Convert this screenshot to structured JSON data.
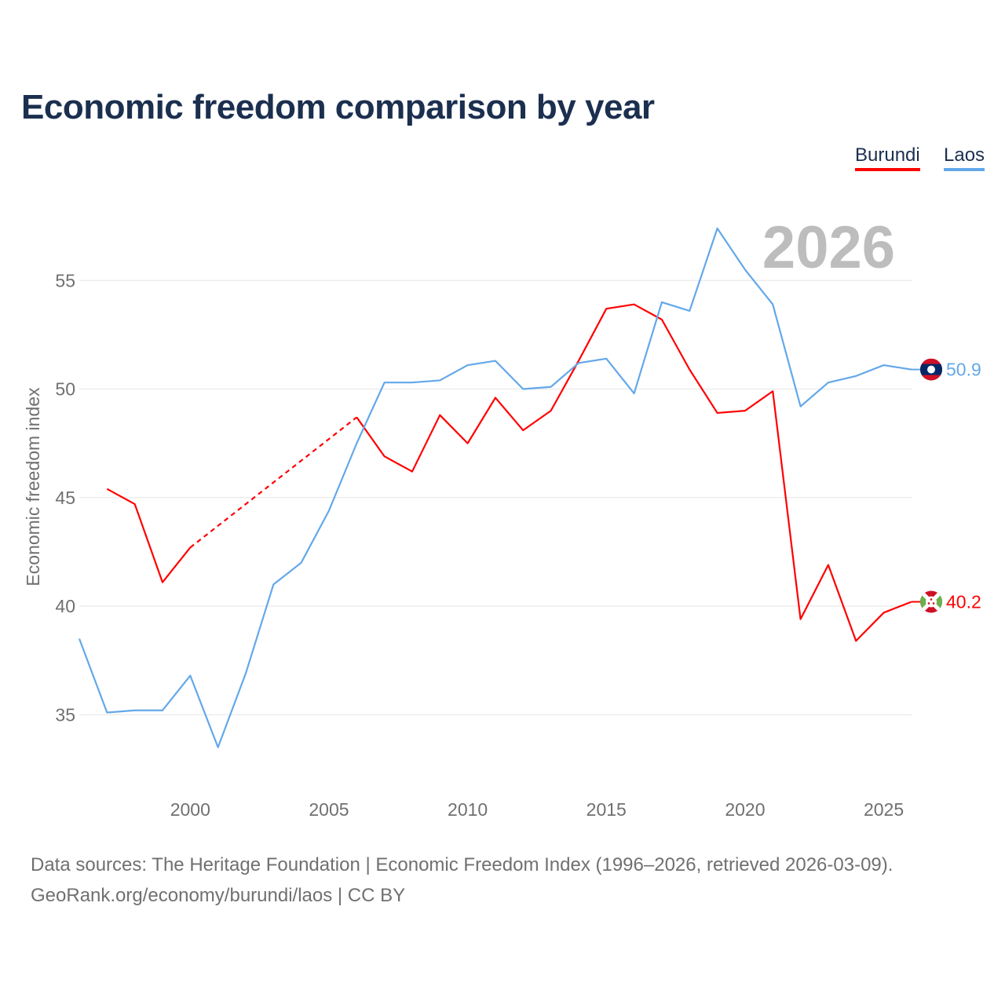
{
  "chart_data": {
    "type": "line",
    "title": "Economic freedom comparison by year",
    "xlabel": "",
    "ylabel": "Economic freedom index",
    "xlim": [
      1996,
      2026
    ],
    "ylim": [
      32,
      58
    ],
    "yticks": [
      35,
      40,
      45,
      50,
      55
    ],
    "xticks": [
      2000,
      2005,
      2010,
      2015,
      2020,
      2025
    ],
    "grid": true,
    "legend_position": "top-right",
    "year_label": "2026",
    "x": [
      1996,
      1997,
      1998,
      1999,
      2000,
      2001,
      2002,
      2003,
      2004,
      2005,
      2006,
      2007,
      2008,
      2009,
      2010,
      2011,
      2012,
      2013,
      2014,
      2015,
      2016,
      2017,
      2018,
      2019,
      2020,
      2021,
      2022,
      2023,
      2024,
      2025,
      2026
    ],
    "series": [
      {
        "name": "Burundi",
        "color": "#ff0000",
        "end_label": "40.2",
        "flag": "burundi-flag",
        "values": [
          null,
          45.4,
          44.7,
          41.1,
          42.7,
          null,
          null,
          null,
          null,
          null,
          48.7,
          46.9,
          46.2,
          48.8,
          47.5,
          49.6,
          48.1,
          49.0,
          51.3,
          53.7,
          53.9,
          53.2,
          50.9,
          48.9,
          49.0,
          49.9,
          39.4,
          41.9,
          38.4,
          39.7,
          40.2
        ]
      },
      {
        "name": "Laos",
        "color": "#63a8ea",
        "end_label": "50.9",
        "flag": "laos-flag",
        "values": [
          38.5,
          35.1,
          35.2,
          35.2,
          36.8,
          33.5,
          36.9,
          41.0,
          42.0,
          44.4,
          47.5,
          50.3,
          50.3,
          50.4,
          51.1,
          51.3,
          50.0,
          50.1,
          51.2,
          51.4,
          49.8,
          54.0,
          53.6,
          57.4,
          55.5,
          53.9,
          49.2,
          50.3,
          50.6,
          51.1,
          50.9
        ]
      }
    ]
  },
  "footer": {
    "sources": "Data sources: The Heritage Foundation | Economic Freedom Index (1996–2026, retrieved 2026-03-09).",
    "credit": "GeoRank.org/economy/burundi/laos | CC BY"
  }
}
